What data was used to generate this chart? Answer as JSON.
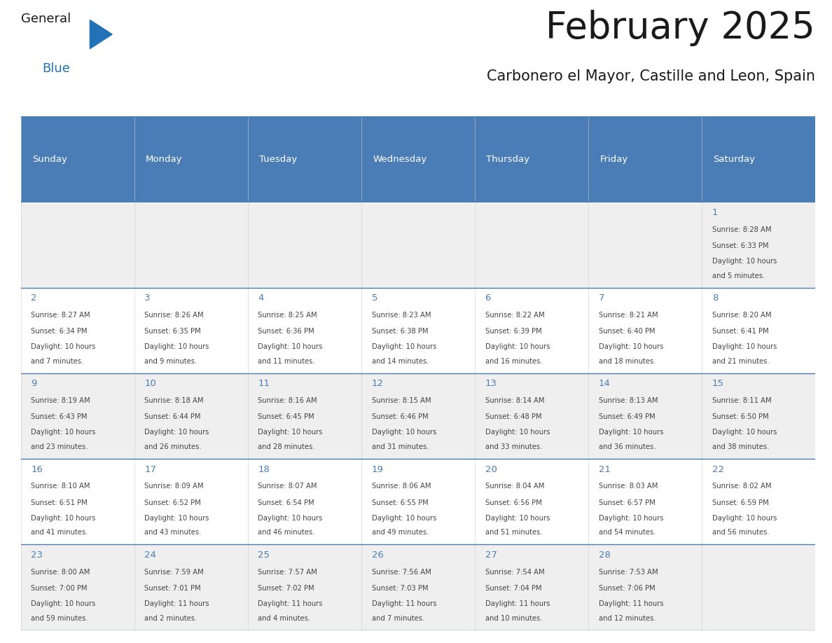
{
  "title": "February 2025",
  "subtitle": "Carbonero el Mayor, Castille and Leon, Spain",
  "header_color": "#4a7db5",
  "header_text_color": "#ffffff",
  "weekdays": [
    "Sunday",
    "Monday",
    "Tuesday",
    "Wednesday",
    "Thursday",
    "Friday",
    "Saturday"
  ],
  "background_color": "#ffffff",
  "cell_bg_odd": "#efefef",
  "cell_bg_even": "#ffffff",
  "grid_line_color": "#4a7db5",
  "day_number_color": "#4a7db5",
  "text_color": "#444444",
  "title_color": "#1a1a1a",
  "subtitle_color": "#1a1a1a",
  "logo_general_color": "#1a1a1a",
  "logo_blue_color": "#2272b8",
  "days": [
    {
      "date": 1,
      "col": 6,
      "row": 0,
      "sunrise": "8:28 AM",
      "sunset": "6:33 PM",
      "daylight": "10 hours and 5 minutes."
    },
    {
      "date": 2,
      "col": 0,
      "row": 1,
      "sunrise": "8:27 AM",
      "sunset": "6:34 PM",
      "daylight": "10 hours and 7 minutes."
    },
    {
      "date": 3,
      "col": 1,
      "row": 1,
      "sunrise": "8:26 AM",
      "sunset": "6:35 PM",
      "daylight": "10 hours and 9 minutes."
    },
    {
      "date": 4,
      "col": 2,
      "row": 1,
      "sunrise": "8:25 AM",
      "sunset": "6:36 PM",
      "daylight": "10 hours and 11 minutes."
    },
    {
      "date": 5,
      "col": 3,
      "row": 1,
      "sunrise": "8:23 AM",
      "sunset": "6:38 PM",
      "daylight": "10 hours and 14 minutes."
    },
    {
      "date": 6,
      "col": 4,
      "row": 1,
      "sunrise": "8:22 AM",
      "sunset": "6:39 PM",
      "daylight": "10 hours and 16 minutes."
    },
    {
      "date": 7,
      "col": 5,
      "row": 1,
      "sunrise": "8:21 AM",
      "sunset": "6:40 PM",
      "daylight": "10 hours and 18 minutes."
    },
    {
      "date": 8,
      "col": 6,
      "row": 1,
      "sunrise": "8:20 AM",
      "sunset": "6:41 PM",
      "daylight": "10 hours and 21 minutes."
    },
    {
      "date": 9,
      "col": 0,
      "row": 2,
      "sunrise": "8:19 AM",
      "sunset": "6:43 PM",
      "daylight": "10 hours and 23 minutes."
    },
    {
      "date": 10,
      "col": 1,
      "row": 2,
      "sunrise": "8:18 AM",
      "sunset": "6:44 PM",
      "daylight": "10 hours and 26 minutes."
    },
    {
      "date": 11,
      "col": 2,
      "row": 2,
      "sunrise": "8:16 AM",
      "sunset": "6:45 PM",
      "daylight": "10 hours and 28 minutes."
    },
    {
      "date": 12,
      "col": 3,
      "row": 2,
      "sunrise": "8:15 AM",
      "sunset": "6:46 PM",
      "daylight": "10 hours and 31 minutes."
    },
    {
      "date": 13,
      "col": 4,
      "row": 2,
      "sunrise": "8:14 AM",
      "sunset": "6:48 PM",
      "daylight": "10 hours and 33 minutes."
    },
    {
      "date": 14,
      "col": 5,
      "row": 2,
      "sunrise": "8:13 AM",
      "sunset": "6:49 PM",
      "daylight": "10 hours and 36 minutes."
    },
    {
      "date": 15,
      "col": 6,
      "row": 2,
      "sunrise": "8:11 AM",
      "sunset": "6:50 PM",
      "daylight": "10 hours and 38 minutes."
    },
    {
      "date": 16,
      "col": 0,
      "row": 3,
      "sunrise": "8:10 AM",
      "sunset": "6:51 PM",
      "daylight": "10 hours and 41 minutes."
    },
    {
      "date": 17,
      "col": 1,
      "row": 3,
      "sunrise": "8:09 AM",
      "sunset": "6:52 PM",
      "daylight": "10 hours and 43 minutes."
    },
    {
      "date": 18,
      "col": 2,
      "row": 3,
      "sunrise": "8:07 AM",
      "sunset": "6:54 PM",
      "daylight": "10 hours and 46 minutes."
    },
    {
      "date": 19,
      "col": 3,
      "row": 3,
      "sunrise": "8:06 AM",
      "sunset": "6:55 PM",
      "daylight": "10 hours and 49 minutes."
    },
    {
      "date": 20,
      "col": 4,
      "row": 3,
      "sunrise": "8:04 AM",
      "sunset": "6:56 PM",
      "daylight": "10 hours and 51 minutes."
    },
    {
      "date": 21,
      "col": 5,
      "row": 3,
      "sunrise": "8:03 AM",
      "sunset": "6:57 PM",
      "daylight": "10 hours and 54 minutes."
    },
    {
      "date": 22,
      "col": 6,
      "row": 3,
      "sunrise": "8:02 AM",
      "sunset": "6:59 PM",
      "daylight": "10 hours and 56 minutes."
    },
    {
      "date": 23,
      "col": 0,
      "row": 4,
      "sunrise": "8:00 AM",
      "sunset": "7:00 PM",
      "daylight": "10 hours and 59 minutes."
    },
    {
      "date": 24,
      "col": 1,
      "row": 4,
      "sunrise": "7:59 AM",
      "sunset": "7:01 PM",
      "daylight": "11 hours and 2 minutes."
    },
    {
      "date": 25,
      "col": 2,
      "row": 4,
      "sunrise": "7:57 AM",
      "sunset": "7:02 PM",
      "daylight": "11 hours and 4 minutes."
    },
    {
      "date": 26,
      "col": 3,
      "row": 4,
      "sunrise": "7:56 AM",
      "sunset": "7:03 PM",
      "daylight": "11 hours and 7 minutes."
    },
    {
      "date": 27,
      "col": 4,
      "row": 4,
      "sunrise": "7:54 AM",
      "sunset": "7:04 PM",
      "daylight": "11 hours and 10 minutes."
    },
    {
      "date": 28,
      "col": 5,
      "row": 4,
      "sunrise": "7:53 AM",
      "sunset": "7:06 PM",
      "daylight": "11 hours and 12 minutes."
    }
  ]
}
